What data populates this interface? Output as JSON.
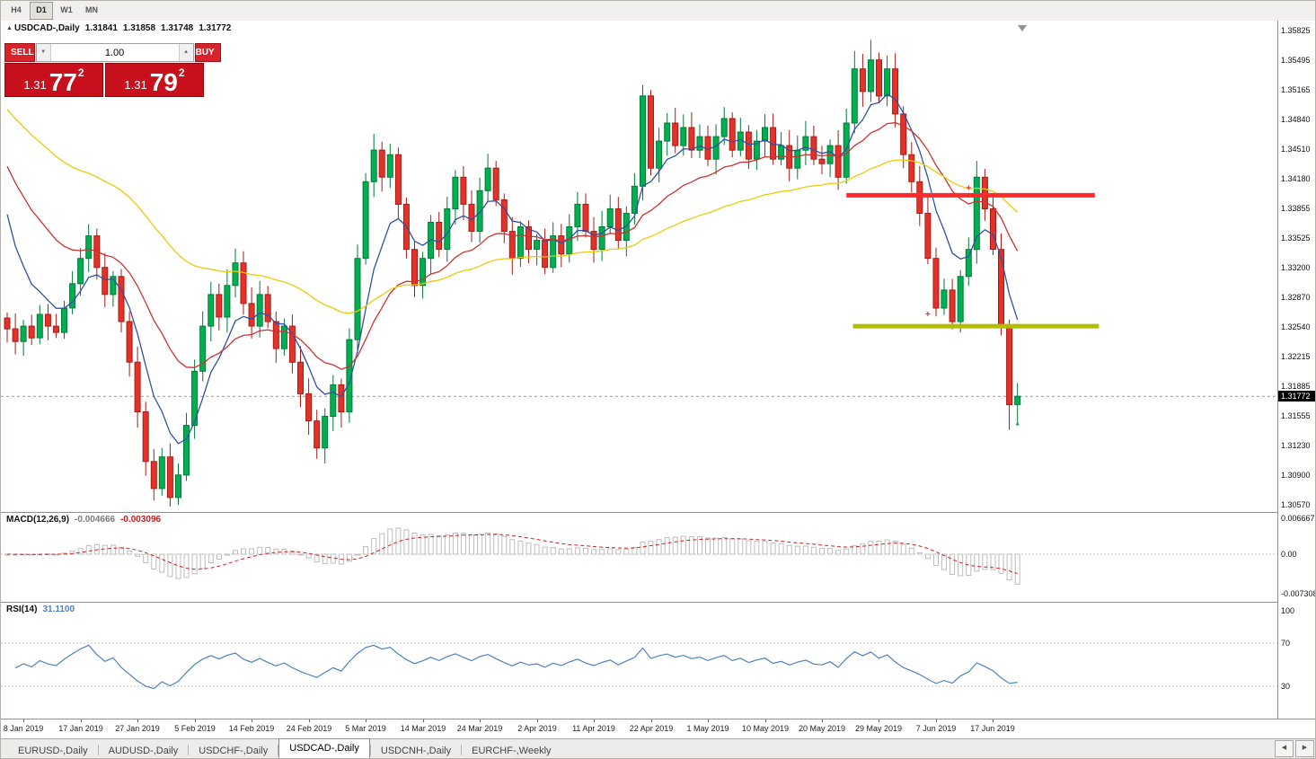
{
  "toolbar": {
    "timeframes": [
      "H4",
      "D1",
      "W1",
      "MN"
    ],
    "active": "D1"
  },
  "chart": {
    "collapse_icon": "▲",
    "symbol_title": "USDCAD-,Daily",
    "open": "1.31841",
    "high": "1.31858",
    "low": "1.31748",
    "close": "1.31772"
  },
  "trade_panel": {
    "sell_label": "SELL",
    "buy_label": "BUY",
    "volume": "1.00",
    "vol_down_icon": "▼",
    "vol_up_icon": "▲",
    "sell_price": {
      "small": "1.31",
      "big": "77",
      "sup": "2"
    },
    "buy_price": {
      "small": "1.31",
      "big": "79",
      "sup": "2"
    }
  },
  "price_scale": [
    "1.35825",
    "1.35495",
    "1.35165",
    "1.34840",
    "1.34510",
    "1.34180",
    "1.33855",
    "1.33525",
    "1.33200",
    "1.32870",
    "1.32540",
    "1.32215",
    "1.31885",
    "1.31555",
    "1.31230",
    "1.30900",
    "1.30570"
  ],
  "current_price_tag": "1.31772",
  "macd_panel": {
    "name": "MACD(12,26,9)",
    "main_value": "-0.004666",
    "signal_value": "-0.003096",
    "scale": [
      "0.006667",
      "0.00",
      "-0.007308"
    ]
  },
  "rsi_panel": {
    "name": "RSI(14)",
    "value": "31.1100",
    "scale": [
      "100",
      "70",
      "30"
    ]
  },
  "time_axis": {
    "labels": [
      "8 Jan 2019",
      "17 Jan 2019",
      "27 Jan 2019",
      "5 Feb 2019",
      "14 Feb 2019",
      "24 Feb 2019",
      "5 Mar 2019",
      "14 Mar 2019",
      "24 Mar 2019",
      "2 Apr 2019",
      "11 Apr 2019",
      "22 Apr 2019",
      "1 May 2019",
      "10 May 2019",
      "20 May 2019",
      "29 May 2019",
      "7 Jun 2019",
      "17 Jun 2019"
    ]
  },
  "tabs": {
    "items": [
      {
        "label": "EURUSD-,Daily",
        "active": false
      },
      {
        "label": "AUDUSD-,Daily",
        "active": false
      },
      {
        "label": "USDCHF-,Daily",
        "active": false
      },
      {
        "label": "USDCAD-,Daily",
        "active": true
      },
      {
        "label": "USDCNH-,Daily",
        "active": false
      },
      {
        "label": "EURCHF-,Weekly",
        "active": false
      }
    ],
    "scroll_left_icon": "◀",
    "scroll_right_icon": "▶"
  },
  "colors": {
    "bull": "#00b050",
    "bull_border": "#007a38",
    "bear": "#e53228",
    "bear_border": "#a81b14",
    "macd_histogram": "#bdbdbd",
    "macd_signal": "#cc2222",
    "rsi_line": "#4f81bd",
    "level_line": "#c0c0c0",
    "current_price_line": "#999999",
    "tag_bg": "#000000",
    "shift_marker": "#909090"
  },
  "chart_data": {
    "type": "candlestick",
    "symbol": "USDCAD",
    "period": "Daily",
    "price_range": [
      1.3057,
      1.35825
    ],
    "current_price": 1.31772,
    "closes": [
      1.3252,
      1.3238,
      1.3255,
      1.3242,
      1.3268,
      1.3255,
      1.3248,
      1.3275,
      1.3302,
      1.333,
      1.3355,
      1.332,
      1.329,
      1.331,
      1.326,
      1.3215,
      1.316,
      1.3105,
      1.3075,
      1.311,
      1.3065,
      1.309,
      1.3145,
      1.3205,
      1.3255,
      1.329,
      1.3265,
      1.33,
      1.3325,
      1.328,
      1.3255,
      1.329,
      1.326,
      1.323,
      1.3255,
      1.3215,
      1.318,
      1.315,
      1.312,
      1.3155,
      1.319,
      1.316,
      1.324,
      1.333,
      1.3415,
      1.345,
      1.342,
      1.3445,
      1.339,
      1.334,
      1.33,
      1.333,
      1.337,
      1.334,
      1.3385,
      1.342,
      1.339,
      1.336,
      1.3405,
      1.343,
      1.3395,
      1.336,
      1.333,
      1.3365,
      1.334,
      1.335,
      1.332,
      1.3355,
      1.3335,
      1.3365,
      1.339,
      1.336,
      1.334,
      1.3365,
      1.3385,
      1.335,
      1.338,
      1.341,
      1.351,
      1.343,
      1.346,
      1.348,
      1.3455,
      1.3475,
      1.345,
      1.3465,
      1.344,
      1.3465,
      1.3485,
      1.345,
      1.347,
      1.344,
      1.346,
      1.3475,
      1.344,
      1.3455,
      1.343,
      1.345,
      1.3465,
      1.344,
      1.3435,
      1.3455,
      1.342,
      1.348,
      1.354,
      1.3515,
      1.355,
      1.351,
      1.354,
      1.349,
      1.3445,
      1.3415,
      1.338,
      1.333,
      1.3275,
      1.3295,
      1.326,
      1.331,
      1.334,
      1.342,
      1.3385,
      1.334,
      1.3255,
      1.3168,
      1.31772
    ],
    "wick_overrides": {
      "10": {
        "h": 1.3368
      },
      "20": {
        "l": 1.3055
      },
      "38": {
        "l": 1.3108
      },
      "45": {
        "h": 1.3468
      },
      "78": {
        "h": 1.3522
      },
      "79": {
        "l": 1.3422
      },
      "104": {
        "h": 1.356
      },
      "106": {
        "h": 1.3572
      },
      "107": {
        "h": 1.3558
      },
      "119": {
        "h": 1.3438
      },
      "123": {
        "l": 1.314
      },
      "124": {
        "l": 1.3148,
        "h": 1.3192
      }
    },
    "moving_averages": [
      {
        "period": 7,
        "seed": 1.3421,
        "color": "#3050a0"
      },
      {
        "period": 20,
        "seed": 1.3451,
        "color": "#cc3333"
      },
      {
        "period": 50,
        "seed": 1.3505,
        "color": "#e8cc0a"
      }
    ],
    "hlines": [
      {
        "name": "resistance",
        "price": 1.34,
        "from_index": 103.0,
        "to_index": 133.5,
        "color": "#ff2a2a",
        "width": 5
      },
      {
        "name": "support",
        "price": 1.3255,
        "from_index": 103.8,
        "to_index": 134.0,
        "color": "#b2bd00",
        "width": 5
      }
    ],
    "markers": [
      {
        "index": 113,
        "price": 1.3268,
        "glyph": "+",
        "color": "#e03030"
      },
      {
        "index": 118,
        "price": 1.3408,
        "glyph": "+",
        "color": "#e03030"
      },
      {
        "index": 124,
        "price": 1.3148,
        "glyph": "▲",
        "color": "#18a04a"
      }
    ],
    "date_anchor": {
      "first_label_index": 2,
      "step": 7
    },
    "macd": {
      "fast": 12,
      "slow": 26,
      "signal": 9
    },
    "rsi": {
      "period": 14,
      "levels": [
        70,
        30
      ]
    }
  }
}
